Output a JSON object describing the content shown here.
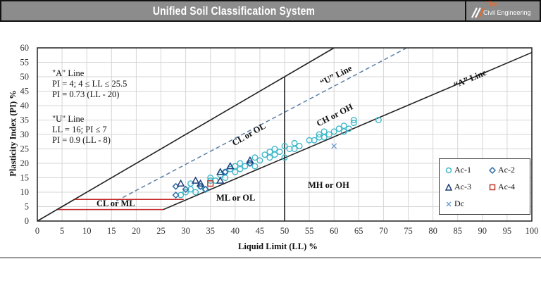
{
  "header": {
    "title": "Unified Soil Classification System",
    "logo_the": "The",
    "logo_name": "Civil Engineering"
  },
  "annotations": {
    "a_line_title": "\"A\" Line",
    "a_line_eq1": "PI = 4; 4 ≤ LL ≤ 25.5",
    "a_line_eq2": "PI = 0.73 (LL - 20)",
    "u_line_title": "\"U\" Line",
    "u_line_eq1": "LL = 16; PI ≤ 7",
    "u_line_eq2": "PI = 0.9 (LL - 8)"
  },
  "zones": {
    "cl_ml": "CL or ML",
    "cl_ol": "CL or OL",
    "ml_ol": "ML or OL",
    "ch_oh": "CH or OH",
    "mh_oh": "MH or OH",
    "u_line": "“U” Line",
    "a_line": "“A” Line"
  },
  "colors": {
    "ac1": "#3fb8c9",
    "ac2": "#2e6ca4",
    "ac3": "#1f3f7a",
    "ac4": "#c0392b",
    "dc": "#6b9ccf",
    "grid": "#d6d6d6",
    "boundary_red": "#c62828",
    "u_line": "#5b7fa8"
  },
  "chart_data": {
    "type": "scatter",
    "title": "",
    "xlabel": "Liquid Limit (LL) %",
    "ylabel": "Plasticity Index (PI) %",
    "xlim": [
      0,
      100
    ],
    "ylim": [
      0,
      60
    ],
    "xticks": [
      0,
      5,
      10,
      15,
      20,
      25,
      30,
      35,
      40,
      45,
      50,
      55,
      60,
      65,
      70,
      75,
      80,
      85,
      90,
      95,
      100
    ],
    "yticks": [
      0,
      5,
      10,
      15,
      20,
      25,
      30,
      35,
      40,
      45,
      50,
      55,
      60
    ],
    "grid": true,
    "legend_position": "lower right",
    "reference_lines": [
      {
        "name": "A Line",
        "equation": "PI = 0.73 (LL - 20)",
        "style": "solid"
      },
      {
        "name": "U Line",
        "equation": "PI = 0.9 (LL - 8)",
        "style": "dashed"
      },
      {
        "name": "PI = LL upper bound",
        "style": "solid"
      },
      {
        "name": "LL = 50 divider",
        "style": "solid"
      },
      {
        "name": "CL-ML band",
        "pi_range": [
          4,
          7
        ],
        "style": "red"
      }
    ],
    "series": [
      {
        "name": "Ac-1",
        "marker": "circle",
        "points": [
          [
            29,
            9
          ],
          [
            30,
            10
          ],
          [
            31,
            11
          ],
          [
            31,
            13
          ],
          [
            32,
            10
          ],
          [
            33,
            12
          ],
          [
            34,
            11
          ],
          [
            35,
            14
          ],
          [
            35,
            15
          ],
          [
            36,
            14
          ],
          [
            37,
            16
          ],
          [
            38,
            15
          ],
          [
            38,
            17
          ],
          [
            39,
            18
          ],
          [
            40,
            17
          ],
          [
            40,
            19
          ],
          [
            41,
            18
          ],
          [
            41,
            20
          ],
          [
            42,
            19
          ],
          [
            43,
            20
          ],
          [
            44,
            22
          ],
          [
            44,
            19
          ],
          [
            45,
            21
          ],
          [
            46,
            23
          ],
          [
            47,
            22
          ],
          [
            47,
            24
          ],
          [
            48,
            23
          ],
          [
            48,
            25
          ],
          [
            49,
            24
          ],
          [
            50,
            26
          ],
          [
            50,
            22
          ],
          [
            51,
            25
          ],
          [
            52,
            27
          ],
          [
            52,
            25
          ],
          [
            53,
            26
          ],
          [
            55,
            28
          ],
          [
            56,
            28
          ],
          [
            57,
            29
          ],
          [
            57,
            30
          ],
          [
            58,
            29
          ],
          [
            58,
            31
          ],
          [
            59,
            30
          ],
          [
            60,
            31
          ],
          [
            61,
            32
          ],
          [
            62,
            33
          ],
          [
            62,
            31
          ],
          [
            63,
            32
          ],
          [
            64,
            35
          ],
          [
            64,
            34
          ],
          [
            69,
            35
          ]
        ]
      },
      {
        "name": "Ac-2",
        "marker": "diamond",
        "points": [
          [
            28,
            9
          ],
          [
            28,
            12
          ],
          [
            30,
            11
          ],
          [
            33,
            12
          ],
          [
            34,
            11
          ],
          [
            38,
            17
          ],
          [
            43,
            20
          ]
        ]
      },
      {
        "name": "Ac-3",
        "marker": "triangle",
        "points": [
          [
            29,
            13
          ],
          [
            32,
            14
          ],
          [
            33,
            13
          ],
          [
            37,
            14
          ],
          [
            37,
            17
          ],
          [
            39,
            19
          ],
          [
            43,
            21
          ]
        ]
      },
      {
        "name": "Ac-4",
        "marker": "square",
        "points": [
          [
            35,
            13
          ]
        ]
      },
      {
        "name": "Dc",
        "marker": "x",
        "points": [
          [
            60,
            26
          ]
        ]
      }
    ]
  },
  "legend": [
    {
      "label": "Ac-1"
    },
    {
      "label": "Ac-2"
    },
    {
      "label": "Ac-3"
    },
    {
      "label": "Ac-4"
    },
    {
      "label": "Dc"
    }
  ]
}
